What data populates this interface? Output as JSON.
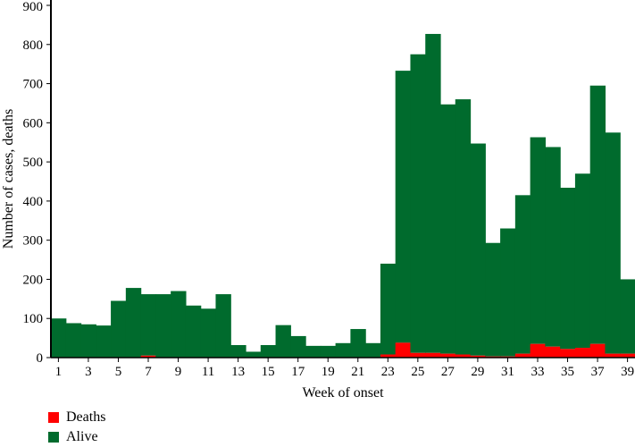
{
  "chart_data": {
    "type": "bar",
    "stacked": true,
    "xlabel": "Week of onset",
    "ylabel": "Number of cases, deaths",
    "ylim": [
      0,
      900
    ],
    "yticks": [
      0,
      100,
      200,
      300,
      400,
      500,
      600,
      700,
      800,
      900
    ],
    "xtick_labels": [
      "1",
      "3",
      "5",
      "7",
      "9",
      "11",
      "13",
      "15",
      "17",
      "19",
      "21",
      "23",
      "25",
      "27",
      "29",
      "31",
      "33",
      "35",
      "37",
      "39"
    ],
    "categories": [
      "1",
      "2",
      "3",
      "4",
      "5",
      "6",
      "7",
      "8",
      "9",
      "10",
      "11",
      "12",
      "13",
      "14",
      "15",
      "16",
      "17",
      "18",
      "19",
      "20",
      "21",
      "22",
      "23",
      "24",
      "25",
      "26",
      "27",
      "28",
      "29",
      "30",
      "31",
      "32",
      "33",
      "34",
      "35",
      "36",
      "37",
      "38",
      "39"
    ],
    "series": [
      {
        "name": "Deaths",
        "color": "#ff0000",
        "values": [
          0,
          0,
          0,
          0,
          0,
          0,
          5,
          0,
          0,
          0,
          0,
          0,
          0,
          0,
          0,
          0,
          0,
          0,
          0,
          0,
          0,
          0,
          8,
          38,
          12,
          12,
          10,
          8,
          5,
          3,
          3,
          10,
          35,
          28,
          22,
          25,
          35,
          10,
          10
        ]
      },
      {
        "name": "Alive",
        "color": "#006b2d",
        "values": [
          100,
          88,
          85,
          82,
          145,
          178,
          157,
          162,
          170,
          133,
          125,
          162,
          32,
          15,
          32,
          83,
          55,
          30,
          30,
          37,
          73,
          37,
          232,
          695,
          763,
          815,
          637,
          652,
          542,
          290,
          327,
          405,
          528,
          510,
          412,
          445,
          660,
          565,
          190
        ]
      }
    ],
    "legend_position": "bottom-left",
    "grid": false
  }
}
